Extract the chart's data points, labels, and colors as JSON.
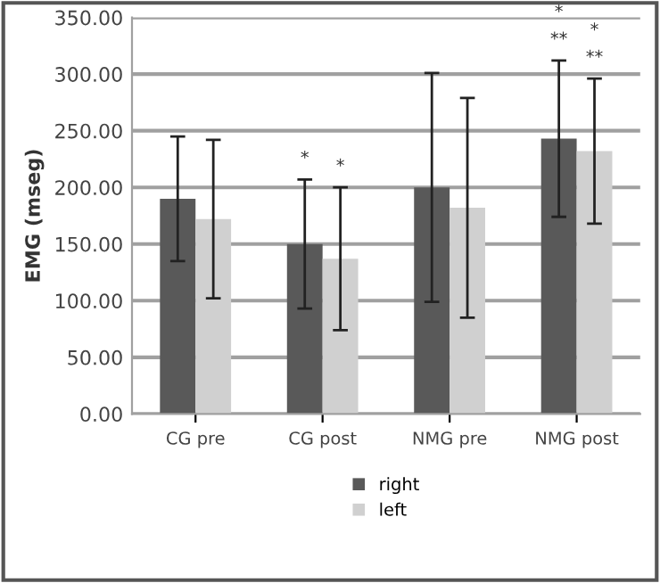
{
  "chart_data": {
    "type": "bar",
    "ylabel": "EMG (mseg)",
    "categories": [
      "CG pre",
      "CG post",
      "NMG pre",
      "NMG post"
    ],
    "series": [
      {
        "name": "right",
        "color": "#595959",
        "values": [
          190,
          150,
          200,
          243
        ],
        "errors": [
          55,
          57,
          101,
          69
        ]
      },
      {
        "name": "left",
        "color": "#d0d0d0",
        "values": [
          172,
          137,
          182,
          232
        ],
        "errors": [
          70,
          63,
          97,
          64
        ]
      }
    ],
    "ylim": [
      0,
      350
    ],
    "yticks": [
      {
        "value": 0,
        "label": "0.00"
      },
      {
        "value": 50,
        "label": "50.00"
      },
      {
        "value": 100,
        "label": "100.00"
      },
      {
        "value": 150,
        "label": "150.00"
      },
      {
        "value": 200,
        "label": "200.00"
      },
      {
        "value": 250,
        "label": "250.00"
      },
      {
        "value": 300,
        "label": "300.00"
      },
      {
        "value": 350,
        "label": "350.00"
      }
    ],
    "annotations": [
      "*",
      "*",
      "*",
      "**",
      "*",
      "**"
    ],
    "grid": "y",
    "legend": "bottom"
  }
}
